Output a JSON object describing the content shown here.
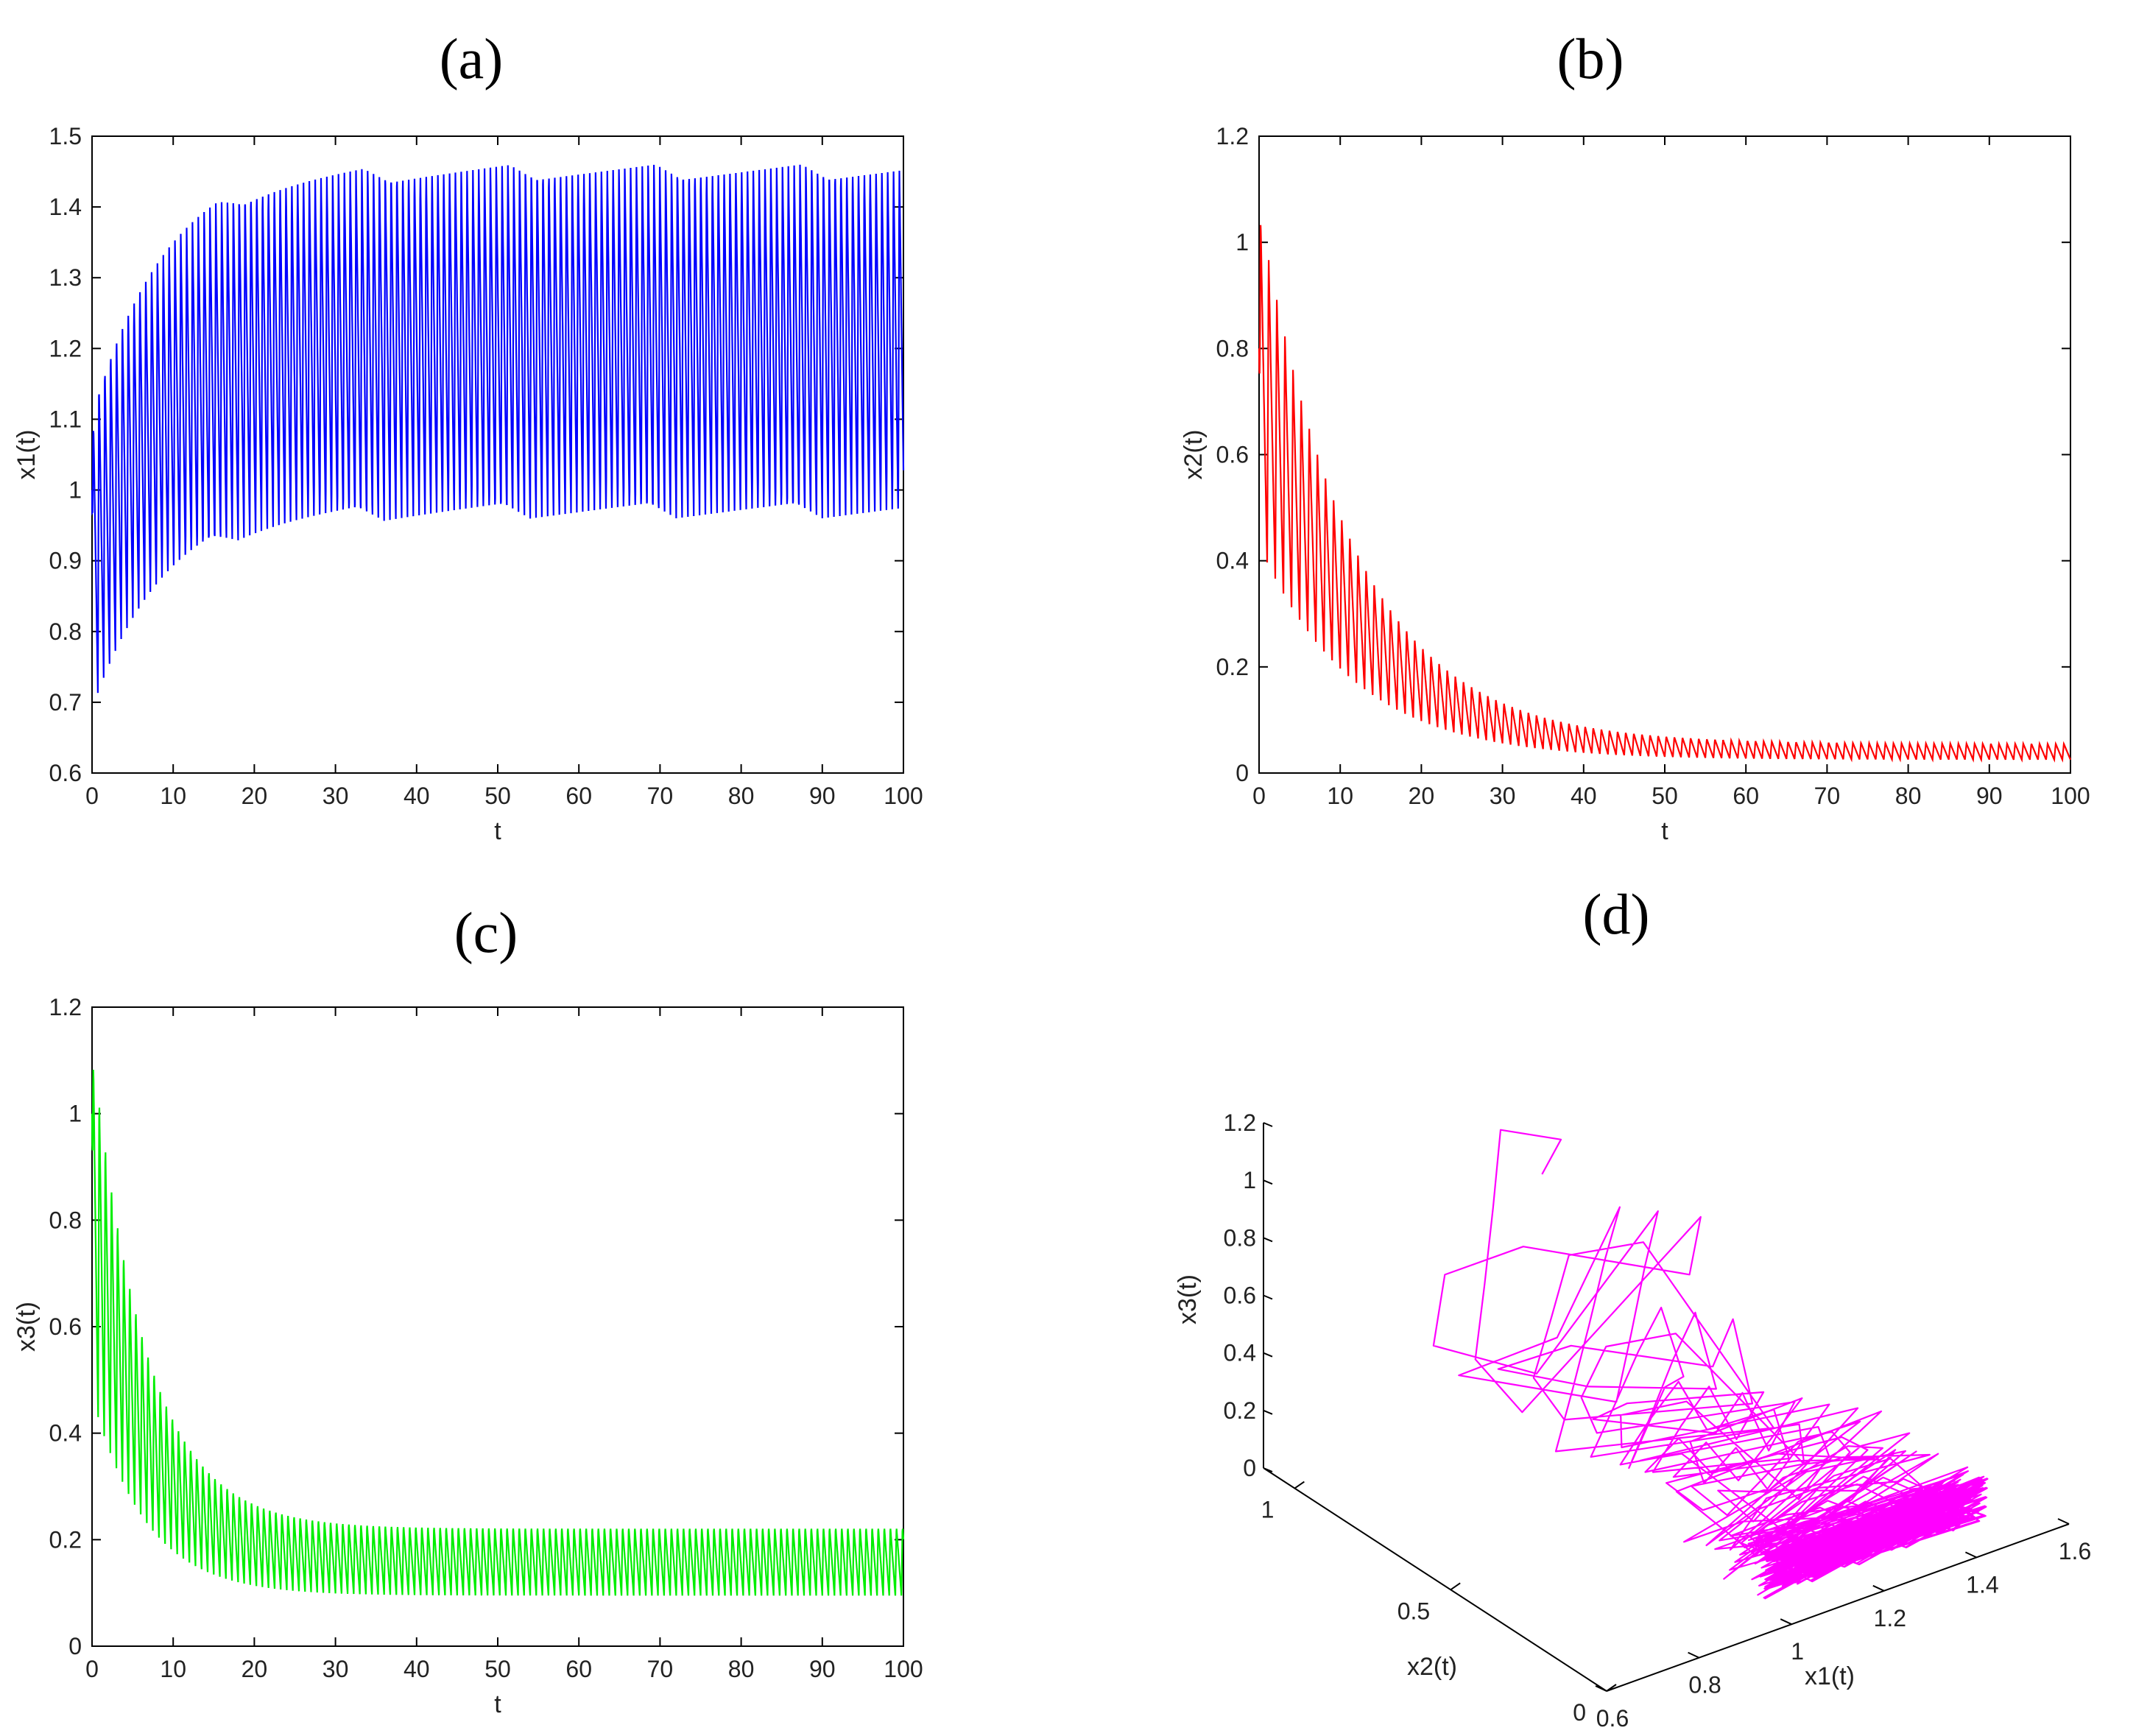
{
  "chart_data": [
    {
      "panel": "(a)",
      "type": "line",
      "title": "(a)",
      "xlabel": "t",
      "ylabel": "x1(t)",
      "xlim": [
        0,
        100
      ],
      "ylim": [
        0.6,
        1.5
      ],
      "xticks": [
        "0",
        "10",
        "20",
        "30",
        "40",
        "50",
        "60",
        "70",
        "80",
        "90",
        "100"
      ],
      "yticks": [
        "0.6",
        "0.7",
        "0.8",
        "0.9",
        "1",
        "1.1",
        "1.2",
        "1.3",
        "1.4",
        "1.5"
      ],
      "color": "#0000ff",
      "series": [
        {
          "name": "x1(t)",
          "initial": 1.0,
          "early_peak": 1.12,
          "early_trough": 0.69,
          "steady_max": 1.46,
          "steady_min": 0.96,
          "settle_time": 25,
          "period": 0.72
        }
      ]
    },
    {
      "panel": "(b)",
      "type": "line",
      "title": "(b)",
      "xlabel": "t",
      "ylabel": "x2(t)",
      "xlim": [
        0,
        100
      ],
      "ylim": [
        0,
        1.2
      ],
      "xticks": [
        "0",
        "10",
        "20",
        "30",
        "40",
        "50",
        "60",
        "70",
        "80",
        "90",
        "100"
      ],
      "yticks": [
        "0",
        "0.2",
        "0.4",
        "0.6",
        "0.8",
        "1",
        "1.2"
      ],
      "color": "#ff0000",
      "series": [
        {
          "name": "x2(t)",
          "initial": 0.8,
          "early_peak": 1.07,
          "early_trough": 0.43,
          "steady_max": 0.055,
          "steady_min": 0.025,
          "settle_time": 35,
          "period": 1.0
        }
      ]
    },
    {
      "panel": "(c)",
      "type": "line",
      "title": "(c)",
      "xlabel": "t",
      "ylabel": "x3(t)",
      "xlim": [
        0,
        100
      ],
      "ylim": [
        0,
        1.2
      ],
      "xticks": [
        "0",
        "10",
        "20",
        "30",
        "40",
        "50",
        "60",
        "70",
        "80",
        "90",
        "100"
      ],
      "yticks": [
        "0",
        "0.2",
        "0.4",
        "0.6",
        "0.8",
        "1",
        "1.2"
      ],
      "color": "#00ee00",
      "series": [
        {
          "name": "x3(t)",
          "initial": 1.0,
          "early_peak": 1.15,
          "early_trough": 0.47,
          "steady_max": 0.225,
          "steady_min": 0.095,
          "settle_time": 20,
          "period": 0.75
        }
      ]
    },
    {
      "panel": "(d)",
      "type": "line3d",
      "title": "(d)",
      "xlabel": "x1(t)",
      "ylabel": "x2(t)",
      "zlabel": "x3(t)",
      "xlim": [
        0.6,
        1.6
      ],
      "ylim": [
        0,
        1.1
      ],
      "zlim": [
        0,
        1.2
      ],
      "xticks": [
        "0.6",
        "0.8",
        "1",
        "1.2",
        "1.4",
        "1.6"
      ],
      "yticks": [
        "0",
        "0.5",
        "1"
      ],
      "zticks": [
        "0",
        "0.2",
        "0.4",
        "0.6",
        "0.8",
        "1",
        "1.2"
      ],
      "color": "#ff00ff",
      "series": [
        {
          "name": "trajectory",
          "x": "x1(t)",
          "y": "x2(t)",
          "z": "x3(t)"
        }
      ]
    }
  ]
}
